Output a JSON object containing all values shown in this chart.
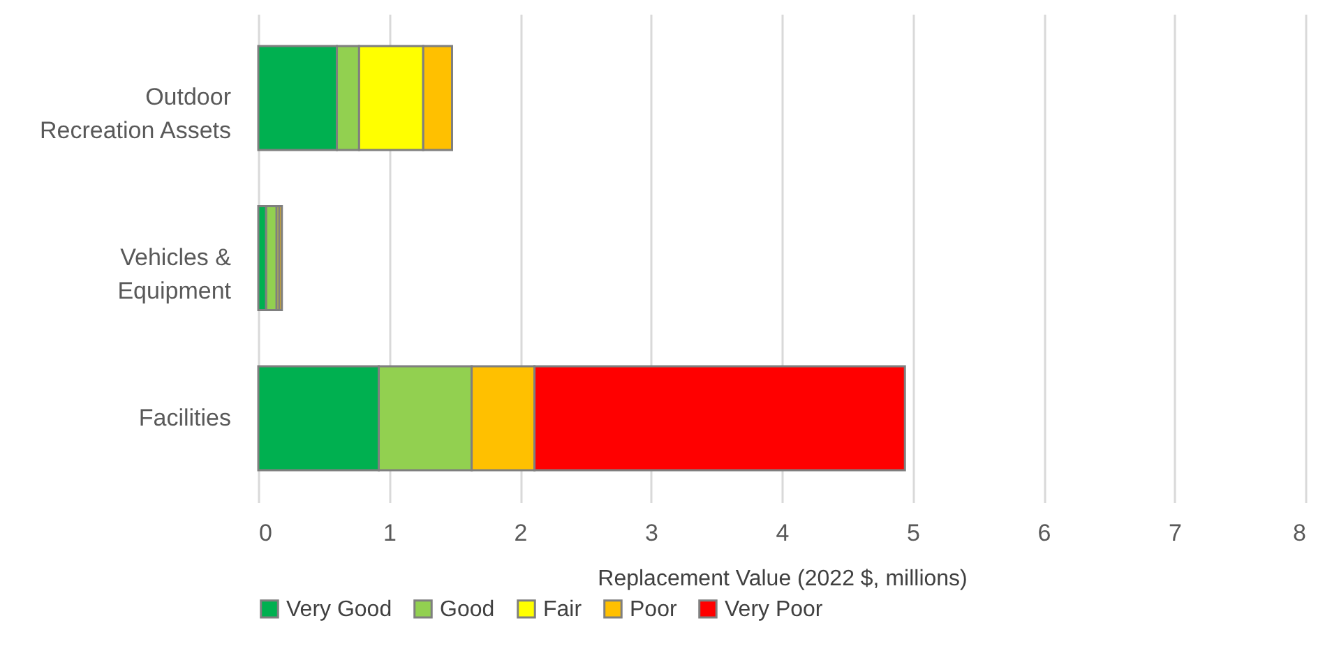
{
  "chart_data": {
    "type": "bar",
    "orientation": "horizontal",
    "stacked": true,
    "xlabel": "Replacement Value (2022 $, millions)",
    "categories": [
      "Outdoor Recreation Assets",
      "Vehicles & Equipment",
      "Facilities"
    ],
    "series": [
      {
        "name": "Very Good",
        "color": "#00b050",
        "values": [
          0.6,
          0.06,
          0.92
        ]
      },
      {
        "name": "Good",
        "color": "#92d050",
        "values": [
          0.17,
          0.08,
          0.71
        ]
      },
      {
        "name": "Fair",
        "color": "#ffff00",
        "values": [
          0.49,
          0.02,
          null
        ]
      },
      {
        "name": "Poor",
        "color": "#ffc000",
        "values": [
          0.22,
          0.02,
          0.48
        ]
      },
      {
        "name": "Very Poor",
        "color": "#ff0000",
        "values": [
          null,
          null,
          2.83
        ]
      }
    ],
    "xlim": [
      0,
      8
    ],
    "xticks": [
      0,
      1,
      2,
      3,
      4,
      5,
      6,
      7,
      8
    ],
    "grid": "x",
    "legend": "bottom"
  }
}
